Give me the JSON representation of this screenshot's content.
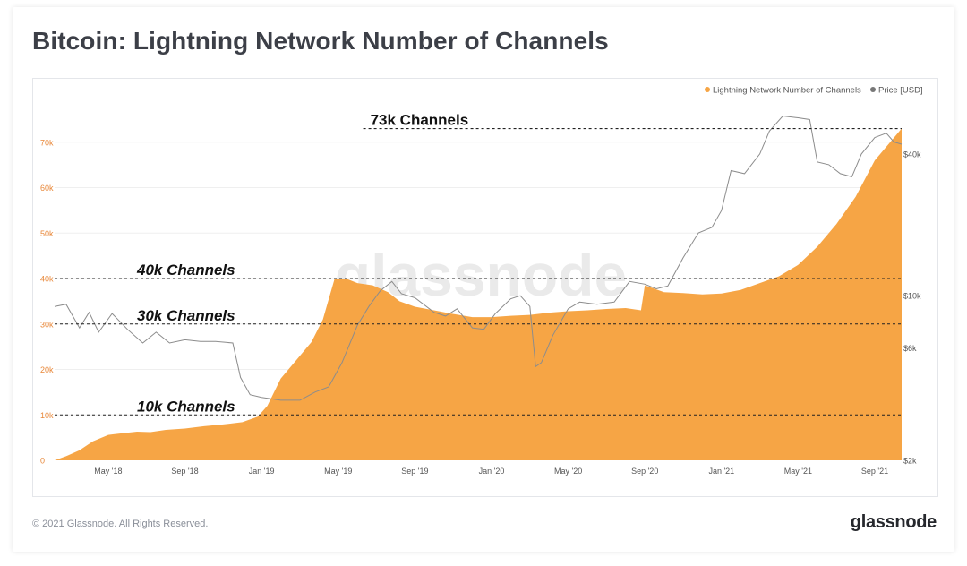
{
  "page": {
    "title": "Bitcoin: Lightning Network Number of Channels",
    "copyright": "© 2021 Glassnode. All Rights Reserved.",
    "brand": "glassnode",
    "watermark": "glassnode"
  },
  "chart_data": {
    "type": "area",
    "title": "Bitcoin: Lightning Network Number of Channels",
    "xlabel": "",
    "ylabel": "",
    "grid": true,
    "legend_position": "top-right",
    "colors": {
      "channels": "#f6a545",
      "price": "#8c8c8c",
      "left_axis_text": "#e8883a",
      "annotation": "#111111"
    },
    "x_ticks": [
      "May '18",
      "Sep '18",
      "Jan '19",
      "May '19",
      "Sep '19",
      "Jan '20",
      "May '20",
      "Sep '20",
      "Jan '21",
      "May '21",
      "Sep '21"
    ],
    "x_tick_months": [
      4,
      8,
      12,
      16,
      20,
      24,
      28,
      32,
      36,
      40,
      44
    ],
    "x_range_months": [
      1.2,
      45.4
    ],
    "y_left": {
      "ticks": [
        "0",
        "10k",
        "20k",
        "30k",
        "40k",
        "50k",
        "60k",
        "70k"
      ],
      "values": [
        0,
        10000,
        20000,
        30000,
        40000,
        50000,
        60000,
        70000
      ],
      "range": [
        0,
        80000
      ]
    },
    "y_right": {
      "scale": "log",
      "ticks": [
        "$2k",
        "$6k",
        "$10k",
        "$40k"
      ],
      "values": [
        2000,
        6000,
        10000,
        40000
      ],
      "range": [
        2000,
        70000
      ]
    },
    "annotations": [
      {
        "label": "73k Channels",
        "value": 73000,
        "x_start_month": 17.3
      },
      {
        "label": "40k Channels",
        "value": 40000,
        "x_start_month": 1.2
      },
      {
        "label": "30k Channels",
        "value": 30000,
        "x_start_month": 1.2
      },
      {
        "label": "10k Channels",
        "value": 10000,
        "x_start_month": 1.2
      }
    ],
    "series": [
      {
        "name": "Lightning Network Number of Channels",
        "kind": "area",
        "points": [
          [
            1.2,
            0
          ],
          [
            1.8,
            900
          ],
          [
            2.5,
            2200
          ],
          [
            3.2,
            4200
          ],
          [
            4.0,
            5600
          ],
          [
            4.8,
            6000
          ],
          [
            5.5,
            6300
          ],
          [
            6.2,
            6200
          ],
          [
            7.0,
            6700
          ],
          [
            8.0,
            7000
          ],
          [
            9.0,
            7500
          ],
          [
            10.0,
            7900
          ],
          [
            11.0,
            8400
          ],
          [
            11.8,
            9600
          ],
          [
            12.3,
            12000
          ],
          [
            13.0,
            18000
          ],
          [
            13.8,
            22000
          ],
          [
            14.6,
            26000
          ],
          [
            15.2,
            31000
          ],
          [
            15.8,
            39800
          ],
          [
            16.4,
            40000
          ],
          [
            17.0,
            39000
          ],
          [
            17.8,
            38500
          ],
          [
            18.6,
            37000
          ],
          [
            19.2,
            35000
          ],
          [
            20.0,
            33800
          ],
          [
            21.0,
            33000
          ],
          [
            22.0,
            32200
          ],
          [
            23.0,
            31500
          ],
          [
            24.0,
            31500
          ],
          [
            25.0,
            31800
          ],
          [
            26.0,
            32000
          ],
          [
            27.0,
            32500
          ],
          [
            28.0,
            32800
          ],
          [
            29.0,
            33000
          ],
          [
            30.0,
            33300
          ],
          [
            31.0,
            33500
          ],
          [
            31.8,
            33000
          ],
          [
            32.0,
            38500
          ],
          [
            33.0,
            37000
          ],
          [
            34.0,
            36800
          ],
          [
            35.0,
            36500
          ],
          [
            36.0,
            36700
          ],
          [
            37.0,
            37500
          ],
          [
            38.0,
            39000
          ],
          [
            39.0,
            40500
          ],
          [
            40.0,
            43000
          ],
          [
            41.0,
            47000
          ],
          [
            42.0,
            52000
          ],
          [
            43.0,
            58000
          ],
          [
            44.0,
            66000
          ],
          [
            45.0,
            71000
          ],
          [
            45.4,
            73000
          ]
        ]
      },
      {
        "name": "Price [USD]",
        "kind": "line",
        "points": [
          [
            1.2,
            9000
          ],
          [
            1.8,
            9200
          ],
          [
            2.5,
            7300
          ],
          [
            3.0,
            8500
          ],
          [
            3.5,
            7000
          ],
          [
            4.2,
            8400
          ],
          [
            5.0,
            7200
          ],
          [
            5.8,
            6300
          ],
          [
            6.5,
            7000
          ],
          [
            7.2,
            6300
          ],
          [
            8.0,
            6500
          ],
          [
            8.8,
            6400
          ],
          [
            9.6,
            6400
          ],
          [
            10.5,
            6300
          ],
          [
            10.9,
            4500
          ],
          [
            11.4,
            3800
          ],
          [
            12.0,
            3700
          ],
          [
            13.0,
            3600
          ],
          [
            14.0,
            3600
          ],
          [
            14.8,
            3900
          ],
          [
            15.5,
            4100
          ],
          [
            16.2,
            5200
          ],
          [
            17.0,
            7500
          ],
          [
            17.6,
            9000
          ],
          [
            18.2,
            10500
          ],
          [
            18.8,
            11500
          ],
          [
            19.3,
            10200
          ],
          [
            20.0,
            9800
          ],
          [
            21.0,
            8500
          ],
          [
            21.6,
            8200
          ],
          [
            22.2,
            8800
          ],
          [
            23.0,
            7300
          ],
          [
            23.6,
            7200
          ],
          [
            24.2,
            8400
          ],
          [
            25.0,
            9700
          ],
          [
            25.5,
            10000
          ],
          [
            26.0,
            9000
          ],
          [
            26.3,
            5000
          ],
          [
            26.6,
            5200
          ],
          [
            27.2,
            6800
          ],
          [
            28.0,
            8800
          ],
          [
            28.6,
            9400
          ],
          [
            29.5,
            9200
          ],
          [
            30.4,
            9400
          ],
          [
            31.2,
            11500
          ],
          [
            32.0,
            11200
          ],
          [
            32.6,
            10700
          ],
          [
            33.2,
            11000
          ],
          [
            34.0,
            14500
          ],
          [
            34.8,
            18500
          ],
          [
            35.5,
            19500
          ],
          [
            36.0,
            23000
          ],
          [
            36.5,
            34000
          ],
          [
            37.2,
            33000
          ],
          [
            38.0,
            40000
          ],
          [
            38.5,
            50000
          ],
          [
            39.2,
            58000
          ],
          [
            40.0,
            57000
          ],
          [
            40.6,
            56000
          ],
          [
            41.0,
            37000
          ],
          [
            41.6,
            36000
          ],
          [
            42.2,
            33000
          ],
          [
            42.8,
            32000
          ],
          [
            43.3,
            40000
          ],
          [
            44.0,
            47000
          ],
          [
            44.6,
            49000
          ],
          [
            45.0,
            45000
          ],
          [
            45.4,
            44000
          ]
        ]
      }
    ]
  }
}
